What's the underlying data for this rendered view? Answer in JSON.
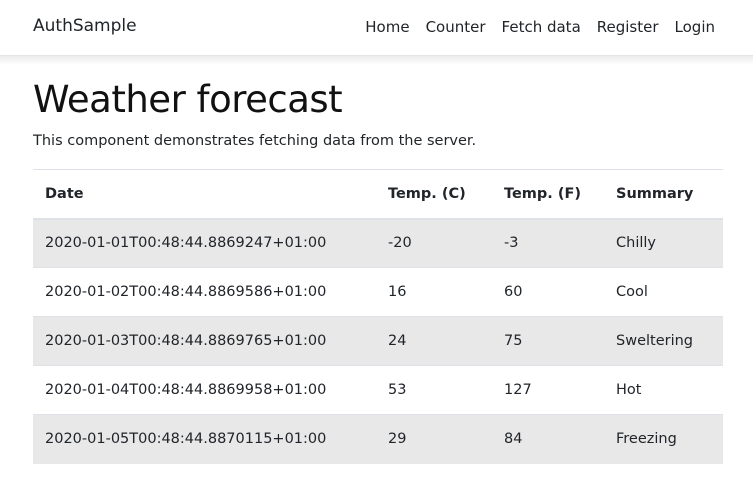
{
  "app": {
    "brand": "AuthSample"
  },
  "nav": {
    "items": [
      "Home",
      "Counter",
      "Fetch data",
      "Register",
      "Login"
    ]
  },
  "page": {
    "title": "Weather forecast",
    "description": "This component demonstrates fetching data from the server."
  },
  "table": {
    "headers": [
      "Date",
      "Temp. (C)",
      "Temp. (F)",
      "Summary"
    ],
    "rows": [
      [
        "2020-01-01T00:48:44.8869247+01:00",
        "-20",
        "-3",
        "Chilly"
      ],
      [
        "2020-01-02T00:48:44.8869586+01:00",
        "16",
        "60",
        "Cool"
      ],
      [
        "2020-01-03T00:48:44.8869765+01:00",
        "24",
        "75",
        "Sweltering"
      ],
      [
        "2020-01-04T00:48:44.8869958+01:00",
        "53",
        "127",
        "Hot"
      ],
      [
        "2020-01-05T00:48:44.8870115+01:00",
        "29",
        "84",
        "Freezing"
      ]
    ]
  },
  "colors": {
    "stripe": "#e8e8e8",
    "border": "#dee2e6"
  }
}
